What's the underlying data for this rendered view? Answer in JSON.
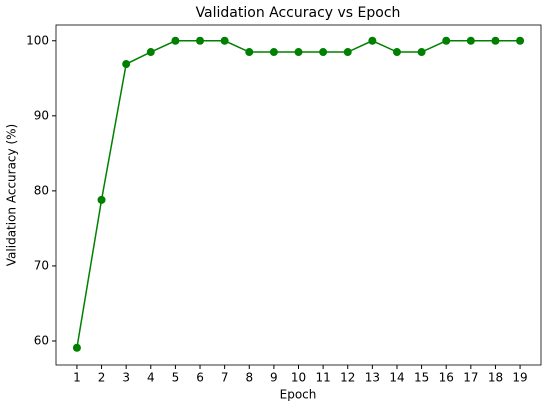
{
  "chart_data": {
    "type": "line",
    "title": "Validation Accuracy vs Epoch",
    "x_label": "Epoch",
    "y_label": "Validation Accuracy (%)",
    "x": [
      1,
      2,
      3,
      4,
      5,
      6,
      7,
      8,
      9,
      10,
      11,
      12,
      13,
      14,
      15,
      16,
      17,
      18,
      19
    ],
    "series": [
      {
        "name": "Validation Accuracy",
        "color": "#008000",
        "values": [
          59.1,
          78.8,
          96.9,
          98.5,
          100,
          100,
          100,
          98.5,
          98.5,
          98.5,
          98.5,
          98.5,
          100,
          98.5,
          98.5,
          100,
          100,
          100,
          100
        ]
      }
    ],
    "xlim": [
      0.15,
      19.85
    ],
    "ylim": [
      56.8,
      102.1
    ],
    "xticks": [
      1,
      2,
      3,
      4,
      5,
      6,
      7,
      8,
      9,
      10,
      11,
      12,
      13,
      14,
      15,
      16,
      17,
      18,
      19
    ],
    "yticks": [
      60,
      70,
      80,
      90,
      100
    ],
    "grid": false
  }
}
